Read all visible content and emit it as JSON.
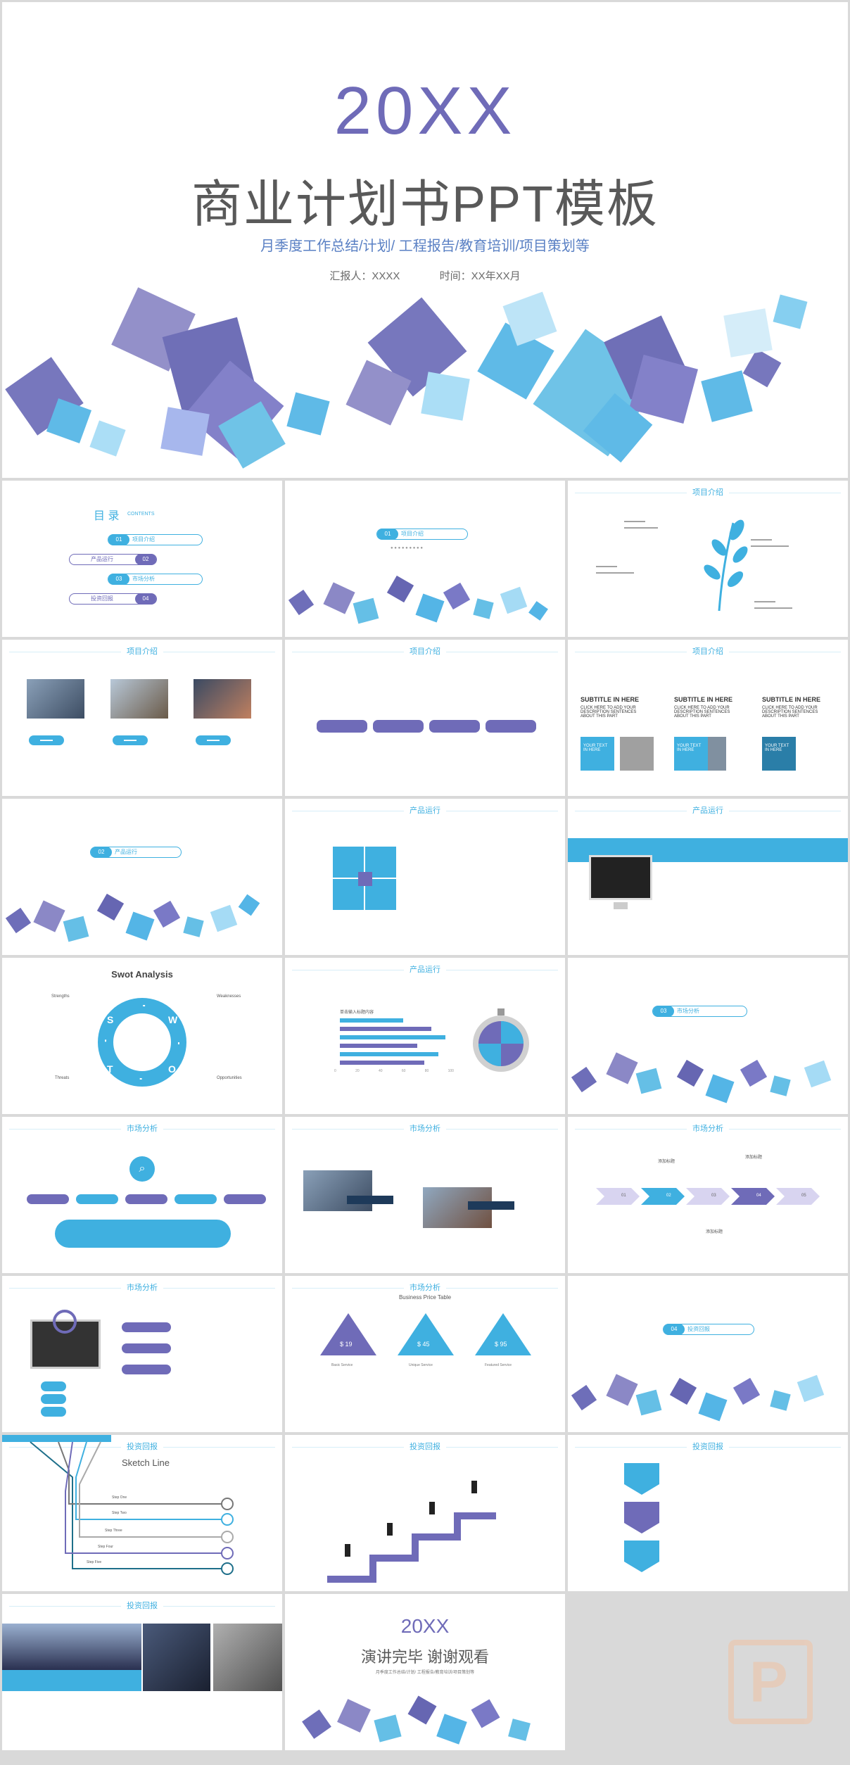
{
  "cover": {
    "year": "20XX",
    "title": "商业计划书PPT模板",
    "subtitle": "月季度工作总结/计划/ 工程报告/教育培训/项目策划等",
    "reporter": "汇报人：XXXX",
    "time": "时间：XX年XX月"
  },
  "toc": {
    "title": "目 录",
    "title_en": "CONTENTS",
    "items": [
      {
        "num": "01",
        "label": "项目介绍"
      },
      {
        "num": "02",
        "label": "产品运行"
      },
      {
        "num": "03",
        "label": "市场分析"
      },
      {
        "num": "04",
        "label": "投资回报"
      }
    ]
  },
  "sections": {
    "s1": {
      "num": "01",
      "label": "项目介绍"
    },
    "s2": {
      "num": "02",
      "label": "产品运行"
    },
    "s3": {
      "num": "03",
      "label": "市场分析"
    },
    "s4": {
      "num": "04",
      "label": "投资回报"
    }
  },
  "headers": {
    "xmjs": "项目介绍",
    "cpyx": "产品运行",
    "scfx": "市场分析",
    "tzhb": "投资回报"
  },
  "subtitle_slide": {
    "heading": "SUBTITLE IN HERE",
    "body": "CLICK HERE TO ADD YOUR DESCRIPTION SENTENCES ABOUT THIS PART",
    "box_text": "YOUR TEXT IN HERE"
  },
  "swot": {
    "title": "Swot Analysis",
    "letters": [
      "S",
      "W",
      "O",
      "T"
    ],
    "labels": [
      "Strengths",
      "Weaknesses",
      "Opportunities",
      "Threats"
    ]
  },
  "chart_slide": {
    "title": "单击输入标题内容",
    "axis": [
      "0",
      "20",
      "40",
      "60",
      "80",
      "100"
    ]
  },
  "price_table": {
    "title": "Business Price Table",
    "prices": [
      "$ 19",
      "$ 45",
      "$ 95"
    ],
    "labels": [
      "Basic Service",
      "Unique Service",
      "Featured Service"
    ]
  },
  "sketch": {
    "title": "Sketch Line",
    "steps": [
      "Step One",
      "Step Two",
      "Step Three",
      "Step Four",
      "Step Five"
    ]
  },
  "timeline": {
    "nums": [
      "01",
      "02",
      "03",
      "04",
      "05"
    ],
    "label": "添加标题"
  },
  "ending": {
    "year": "20XX",
    "title": "演讲完毕 谢谢观看",
    "subtitle": "月季度工作总结/计划/ 工程报告/教育培训/项目策划等"
  },
  "colors": {
    "accent_blue": "#3fb0e0",
    "accent_purple": "#6f6bb8",
    "gray_text": "#595959"
  }
}
